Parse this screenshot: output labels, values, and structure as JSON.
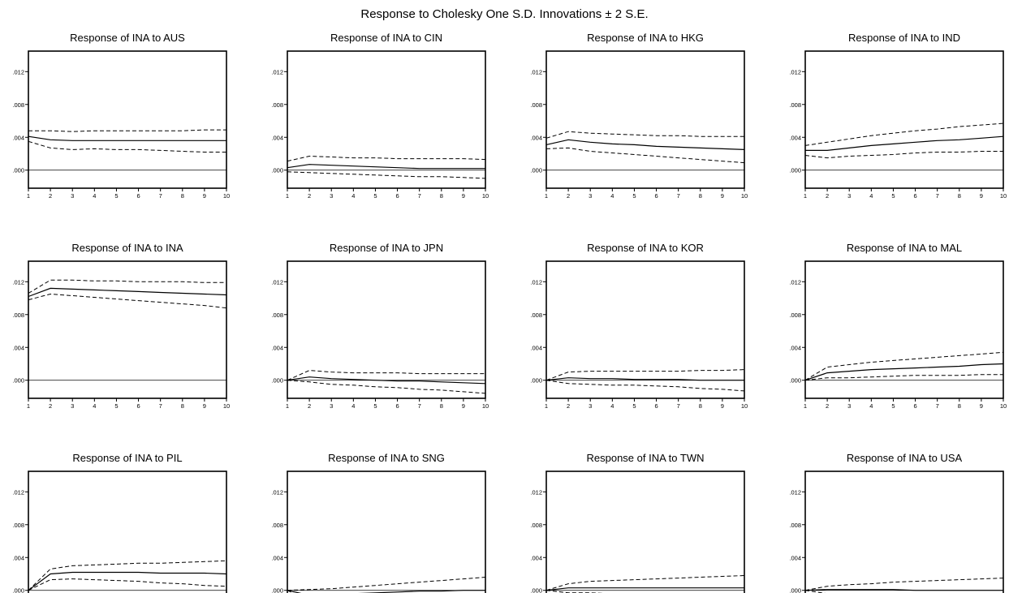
{
  "title": "Response to Cholesky One S.D. Innovations ± 2 S.E.",
  "chart_data": {
    "type": "line",
    "layout": "4 columns x 3 rows",
    "x_ticks": [
      1,
      2,
      3,
      4,
      5,
      6,
      7,
      8,
      9,
      10
    ],
    "y_ticks": [
      0.0,
      0.004,
      0.008,
      0.012
    ],
    "y_tick_labels": [
      ".000",
      ".004",
      ".008",
      ".012"
    ],
    "ylim": [
      -0.0022,
      0.0145
    ],
    "xlim": [
      1,
      10
    ],
    "grid": false,
    "panels": [
      {
        "title": "Response of INA to AUS",
        "response": [
          0.0041,
          0.0037,
          0.0036,
          0.0036,
          0.0036,
          0.0036,
          0.0036,
          0.0036,
          0.0036,
          0.0036
        ],
        "upper": [
          0.0048,
          0.0048,
          0.0047,
          0.0048,
          0.0048,
          0.0048,
          0.0048,
          0.0048,
          0.0049,
          0.0049
        ],
        "lower": [
          0.0035,
          0.0027,
          0.0025,
          0.0026,
          0.0025,
          0.0025,
          0.0024,
          0.0023,
          0.0022,
          0.0022
        ]
      },
      {
        "title": "Response of INA to CIN",
        "response": [
          0.0003,
          0.0007,
          0.0006,
          0.0005,
          0.0004,
          0.0003,
          0.0002,
          0.0002,
          0.0002,
          0.0002
        ],
        "upper": [
          0.0011,
          0.0017,
          0.0016,
          0.0015,
          0.0015,
          0.0014,
          0.0014,
          0.0014,
          0.0014,
          0.0013
        ],
        "lower": [
          -0.0002,
          -0.0003,
          -0.0004,
          -0.0005,
          -0.0006,
          -0.0007,
          -0.0008,
          -0.0008,
          -0.0009,
          -0.001
        ]
      },
      {
        "title": "Response of INA to HKG",
        "response": [
          0.0031,
          0.0037,
          0.0034,
          0.0032,
          0.0031,
          0.0029,
          0.0028,
          0.0027,
          0.0026,
          0.0025
        ],
        "upper": [
          0.0039,
          0.0047,
          0.0045,
          0.0044,
          0.0043,
          0.0042,
          0.0042,
          0.0041,
          0.0041,
          0.0041
        ],
        "lower": [
          0.0026,
          0.0027,
          0.0023,
          0.0021,
          0.0019,
          0.0017,
          0.0015,
          0.0013,
          0.0011,
          0.0009
        ]
      },
      {
        "title": "Response of INA to IND",
        "response": [
          0.0024,
          0.0024,
          0.0027,
          0.003,
          0.0032,
          0.0034,
          0.0036,
          0.0037,
          0.0039,
          0.0041
        ],
        "upper": [
          0.003,
          0.0034,
          0.0038,
          0.0042,
          0.0045,
          0.0048,
          0.005,
          0.0053,
          0.0055,
          0.0057
        ],
        "lower": [
          0.0018,
          0.0015,
          0.0017,
          0.0018,
          0.0019,
          0.0021,
          0.0022,
          0.0022,
          0.0023,
          0.0023
        ]
      },
      {
        "title": "Response of INA to INA",
        "response": [
          0.0102,
          0.0112,
          0.0111,
          0.011,
          0.0109,
          0.0108,
          0.0107,
          0.0106,
          0.0105,
          0.0104
        ],
        "upper": [
          0.0106,
          0.0122,
          0.0122,
          0.0121,
          0.0121,
          0.012,
          0.012,
          0.012,
          0.0119,
          0.0119
        ],
        "lower": [
          0.0098,
          0.0105,
          0.0103,
          0.0101,
          0.0099,
          0.0097,
          0.0095,
          0.0093,
          0.0091,
          0.0088
        ]
      },
      {
        "title": "Response of INA to JPN",
        "response": [
          0.0,
          0.0004,
          0.0002,
          0.0001,
          0.0,
          -0.0001,
          -0.0001,
          -0.0002,
          -0.0003,
          -0.0004
        ],
        "upper": [
          0.0,
          0.0012,
          0.001,
          0.0009,
          0.0009,
          0.0009,
          0.0008,
          0.0008,
          0.0008,
          0.0008
        ],
        "lower": [
          0.0,
          -0.0002,
          -0.0005,
          -0.0006,
          -0.0008,
          -0.0009,
          -0.0011,
          -0.0012,
          -0.0014,
          -0.0016
        ]
      },
      {
        "title": "Response of INA to KOR",
        "response": [
          0.0,
          0.0003,
          0.0002,
          0.0002,
          0.0001,
          0.0001,
          0.0001,
          0.0,
          0.0,
          0.0
        ],
        "upper": [
          0.0,
          0.001,
          0.0011,
          0.0011,
          0.0011,
          0.0011,
          0.0011,
          0.0012,
          0.0012,
          0.0013
        ],
        "lower": [
          0.0,
          -0.0004,
          -0.0005,
          -0.0006,
          -0.0006,
          -0.0007,
          -0.0008,
          -0.001,
          -0.0011,
          -0.0013
        ]
      },
      {
        "title": "Response of INA to MAL",
        "response": [
          0.0,
          0.0009,
          0.0011,
          0.0013,
          0.0014,
          0.0015,
          0.0016,
          0.0017,
          0.0019,
          0.002
        ],
        "upper": [
          0.0,
          0.0016,
          0.0019,
          0.0022,
          0.0024,
          0.0026,
          0.0028,
          0.003,
          0.0032,
          0.0034
        ],
        "lower": [
          0.0,
          0.0003,
          0.0003,
          0.0004,
          0.0005,
          0.0006,
          0.0006,
          0.0006,
          0.0007,
          0.0007
        ]
      },
      {
        "title": "Response of INA to PIL",
        "response": [
          0.0,
          0.002,
          0.0022,
          0.0022,
          0.0022,
          0.0022,
          0.0021,
          0.0021,
          0.0021,
          0.002
        ],
        "upper": [
          0.0,
          0.0026,
          0.003,
          0.0031,
          0.0032,
          0.0033,
          0.0033,
          0.0034,
          0.0035,
          0.0036
        ],
        "lower": [
          0.0,
          0.0013,
          0.0014,
          0.0013,
          0.0012,
          0.0011,
          0.0009,
          0.0008,
          0.0006,
          0.0005
        ]
      },
      {
        "title": "Response of INA to SNG",
        "response": [
          0.0,
          -0.0006,
          -0.0005,
          -0.0004,
          -0.0003,
          -0.0002,
          -0.0001,
          -0.0001,
          0.0,
          0.0
        ],
        "upper": [
          0.0,
          0.0001,
          0.0002,
          0.0004,
          0.0006,
          0.0008,
          0.001,
          0.0012,
          0.0014,
          0.0016
        ],
        "lower": [
          0.0,
          -0.0013,
          -0.0013,
          -0.0013,
          -0.0013,
          -0.0014,
          -0.0014,
          -0.0015,
          -0.0016,
          -0.0017
        ]
      },
      {
        "title": "Response of INA to TWN",
        "response": [
          0.0,
          0.0003,
          0.0003,
          0.0003,
          0.0003,
          0.0003,
          0.0003,
          0.0003,
          0.0003,
          0.0003
        ],
        "upper": [
          0.0,
          0.0008,
          0.0011,
          0.0012,
          0.0013,
          0.0014,
          0.0015,
          0.0016,
          0.0017,
          0.0018
        ],
        "lower": [
          0.0,
          -0.0003,
          -0.0003,
          -0.0004,
          -0.0005,
          -0.0006,
          -0.0007,
          -0.0008,
          -0.001,
          -0.0011
        ]
      },
      {
        "title": "Response of INA to USA",
        "response": [
          0.0,
          0.0001,
          0.0001,
          0.0001,
          0.0001,
          0.0,
          0.0,
          0.0,
          0.0,
          0.0
        ],
        "upper": [
          0.0,
          0.0005,
          0.0007,
          0.0008,
          0.001,
          0.0011,
          0.0012,
          0.0013,
          0.0014,
          0.0015
        ],
        "lower": [
          0.0,
          -0.0004,
          -0.0004,
          -0.0005,
          -0.0006,
          -0.0008,
          -0.0009,
          -0.0011,
          -0.0012,
          -0.0014
        ]
      }
    ]
  }
}
